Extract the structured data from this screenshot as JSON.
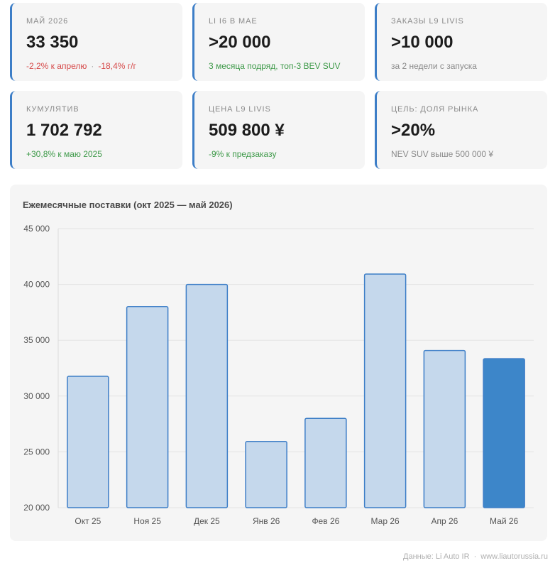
{
  "cards": [
    {
      "label": "МАЙ 2026",
      "value": "33 350",
      "sub_parts": [
        {
          "text": "-2,2% к апрелю",
          "tone": "neg"
        },
        {
          "text": "-18,4% г/г",
          "tone": "neg"
        }
      ]
    },
    {
      "label": "LI I6 В МАЕ",
      "value": ">20 000",
      "sub_parts": [
        {
          "text": "3 месяца подряд, топ-3 BEV SUV",
          "tone": "pos"
        }
      ]
    },
    {
      "label": "ЗАКАЗЫ L9 LIVIS",
      "value": ">10 000",
      "sub_parts": [
        {
          "text": "за 2 недели с запуска",
          "tone": "neu"
        }
      ]
    },
    {
      "label": "КУМУЛЯТИВ",
      "value": "1 702 792",
      "sub_parts": [
        {
          "text": "+30,8% к маю 2025",
          "tone": "pos"
        }
      ]
    },
    {
      "label": "ЦЕНА L9 LIVIS",
      "value": "509 800 ¥",
      "sub_parts": [
        {
          "text": "-9% к предзаказу",
          "tone": "pos"
        }
      ]
    },
    {
      "label": "ЦЕЛЬ: ДОЛЯ РЫНКА",
      "value": ">20%",
      "sub_parts": [
        {
          "text": "NEV SUV выше 500 000 ¥",
          "tone": "neu"
        }
      ]
    }
  ],
  "separator_glyph": "·",
  "chart_data": {
    "type": "bar",
    "title": "Ежемесячные поставки (окт 2025 — май 2026)",
    "categories": [
      "Окт 25",
      "Ноя 25",
      "Дек 25",
      "Янв 26",
      "Фев 26",
      "Мар 26",
      "Апр 26",
      "Май 26"
    ],
    "values": [
      31767,
      38016,
      40000,
      25930,
      28000,
      40930,
      34085,
      33350
    ],
    "highlight_index": 7,
    "ylim": [
      20000,
      45000
    ],
    "yticks": [
      20000,
      25000,
      30000,
      35000,
      40000,
      45000
    ],
    "ytick_labels": [
      "20 000",
      "25 000",
      "30 000",
      "35 000",
      "40 000",
      "45 000"
    ],
    "xlabel": "",
    "ylabel": "",
    "grid": true,
    "colors": {
      "bar": "#c5d8ec",
      "bar_edge": "#3d7ec7",
      "highlight": "#3d86c9",
      "grid": "#e4e4e4",
      "axis_text": "#555555"
    }
  },
  "footer": {
    "source": "Данные: Li Auto IR",
    "site": "www.liautorussia.ru"
  }
}
